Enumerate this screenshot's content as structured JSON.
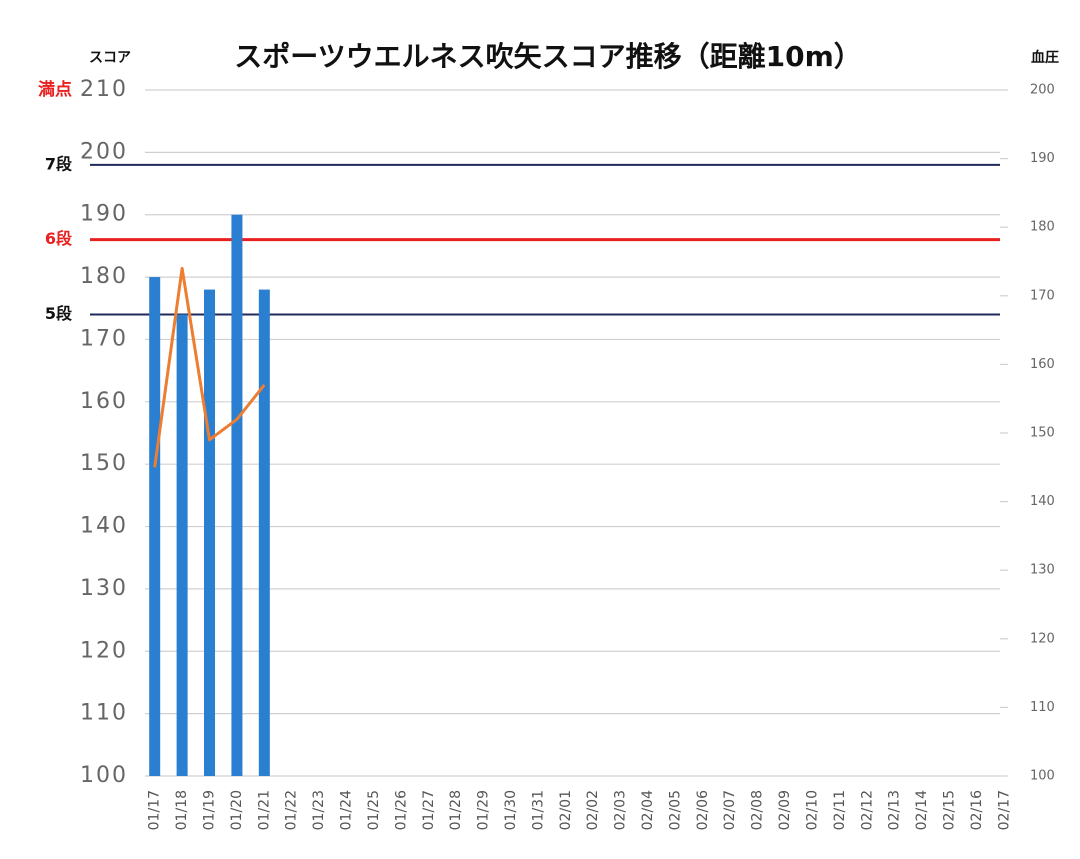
{
  "chart_data": {
    "type": "bar",
    "title": "スポーツウエルネス吹矢スコア推移（距離10m）",
    "y_label": "スコア",
    "y2_label": "血圧",
    "annotation": "満点",
    "categories": [
      "01/17",
      "01/18",
      "01/19",
      "01/20",
      "01/21",
      "01/22",
      "01/23",
      "01/24",
      "01/25",
      "01/26",
      "01/27",
      "01/28",
      "01/29",
      "01/30",
      "01/31",
      "02/01",
      "02/02",
      "02/03",
      "02/04",
      "02/05",
      "02/06",
      "02/07",
      "02/08",
      "02/09",
      "02/10",
      "02/11",
      "02/12",
      "02/13",
      "02/14",
      "02/15",
      "02/16",
      "02/17"
    ],
    "series": [
      {
        "type": "bar",
        "color": "#2a7fd0",
        "values": [
          180,
          174,
          178,
          190,
          178,
          null,
          null,
          null,
          null,
          null,
          null,
          null,
          null,
          null,
          null,
          null,
          null,
          null,
          null,
          null,
          null,
          null,
          null,
          null,
          null,
          null,
          null,
          null,
          null,
          null,
          null,
          null
        ]
      },
      {
        "type": "line",
        "axis": "y2",
        "color": "#ed7d31",
        "values": [
          145,
          174,
          149,
          152,
          157,
          null,
          null,
          null,
          null,
          null,
          null,
          null,
          null,
          null,
          null,
          null,
          null,
          null,
          null,
          null,
          null,
          null,
          null,
          null,
          null,
          null,
          null,
          null,
          null,
          null,
          null,
          null
        ]
      }
    ],
    "reference_lines": [
      {
        "label": "7段",
        "value": 198,
        "color": "#1f2a5a"
      },
      {
        "label": "6段",
        "value": 186,
        "color": "#e8201f"
      },
      {
        "label": "5段",
        "value": 174,
        "color": "#1f2a5a"
      }
    ],
    "ylim": [
      100,
      210
    ],
    "yticks": [
      100,
      110,
      120,
      130,
      140,
      150,
      160,
      170,
      180,
      190,
      200,
      210
    ],
    "y2lim": [
      100,
      200
    ],
    "y2ticks": [
      100,
      110,
      120,
      130,
      140,
      150,
      160,
      170,
      180,
      190,
      200
    ],
    "grid": true
  }
}
